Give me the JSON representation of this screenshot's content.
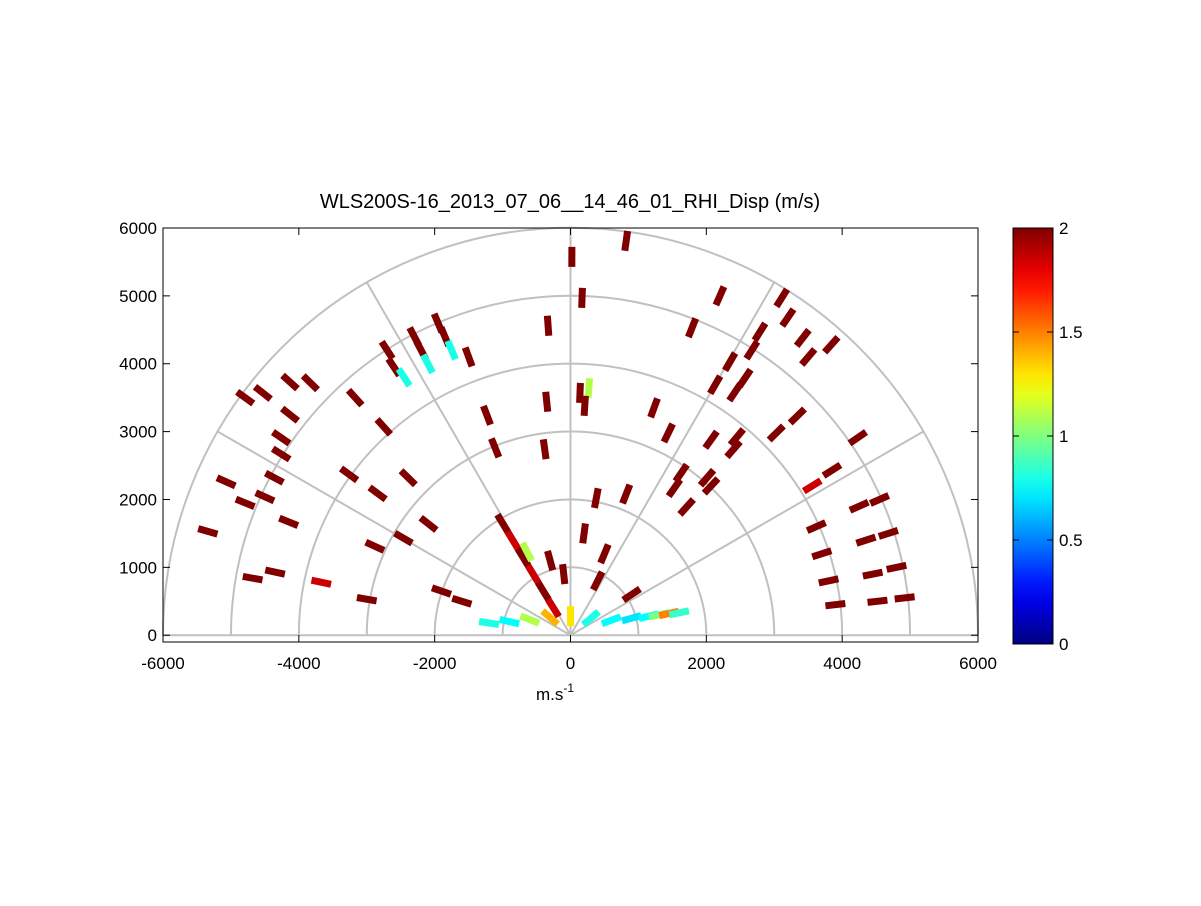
{
  "chart_data": {
    "type": "scatter",
    "title": "WLS200S-16_2013_07_06__14_46_01_RHI_Disp (m/s)",
    "xlabel": [
      "m.s",
      "-1"
    ],
    "xlim": [
      -6000,
      6000
    ],
    "xticks": [
      -6000,
      -4000,
      -2000,
      0,
      2000,
      4000,
      6000
    ],
    "ylim": [
      -100,
      6000
    ],
    "yticks": [
      0,
      1000,
      2000,
      3000,
      4000,
      5000,
      6000
    ],
    "clim": [
      0,
      2
    ],
    "cticks": [
      0,
      0.5,
      1,
      1.5,
      2
    ],
    "colormap": "jet",
    "polar_grid": true,
    "x": [
      20,
      820,
      170,
      2200,
      3110,
      -330,
      1790,
      2790,
      3200,
      3420,
      3840,
      2670,
      3500,
      2350,
      2570,
      2130,
      2420,
      270,
      140,
      -350,
      210,
      1230,
      -1230,
      3340,
      1440,
      3030,
      2450,
      4230,
      2070,
      2400,
      -1110,
      -380,
      1630,
      2010,
      2070,
      3850,
      3560,
      1530,
      820,
      380,
      1710,
      -2390,
      -2840,
      -2090,
      -2460,
      -2880,
      -3000,
      -3670,
      -4350,
      -4680,
      -4150,
      -5340,
      -4500,
      -4790,
      -5070,
      -4360,
      -4260,
      -4260,
      -4130,
      -4530,
      -4130,
      -3830,
      -4790,
      -3260,
      -3170,
      -2750,
      -1500,
      -2700,
      -2300,
      -1950,
      -2600,
      -2200,
      -1850,
      -2450,
      -2100,
      -1750,
      3620,
      3700,
      3800,
      3900,
      4250,
      4350,
      4450,
      4520,
      4550,
      4680,
      4800,
      4920,
      -1000,
      -850,
      -700,
      -550,
      -400,
      -250,
      -640,
      -1200,
      -900,
      -600,
      -300,
      0,
      300,
      600,
      900,
      1150,
      1300,
      1450,
      1600,
      -300,
      200,
      500,
      -100,
      400,
      900,
      -1600,
      -1900
    ],
    "y": [
      5575,
      5810,
      4970,
      5000,
      4970,
      4560,
      4530,
      4470,
      4680,
      4380,
      4280,
      4200,
      4100,
      4030,
      3790,
      3690,
      3580,
      3640,
      3570,
      3440,
      3380,
      3350,
      3240,
      3230,
      2980,
      2980,
      2920,
      2910,
      2880,
      2740,
      2760,
      2740,
      2390,
      2320,
      2200,
      2430,
      2200,
      2170,
      2080,
      2020,
      1890,
      2320,
      2090,
      1640,
      1430,
      1310,
      530,
      780,
      930,
      840,
      1670,
      1530,
      2040,
      1950,
      2260,
      2320,
      2670,
      2910,
      3250,
      3570,
      3730,
      3720,
      3500,
      2370,
      3500,
      3070,
      4100,
      4200,
      4400,
      4600,
      3950,
      4200,
      4400,
      3800,
      4000,
      4200,
      1600,
      1200,
      800,
      450,
      1900,
      1400,
      900,
      500,
      2000,
      1500,
      1000,
      550,
      1650,
      1400,
      1150,
      900,
      650,
      400,
      1230,
      180,
      200,
      230,
      260,
      280,
      250,
      220,
      250,
      280,
      300,
      320,
      330,
      1100,
      1500,
      1200,
      900,
      800,
      600,
      500,
      650
    ],
    "values": [
      2,
      2,
      2,
      2,
      2,
      2,
      2,
      2,
      2,
      2,
      2,
      2,
      2,
      2,
      2,
      2,
      2,
      1.1,
      2,
      2,
      2,
      2,
      2,
      2,
      2,
      2,
      2,
      2,
      2,
      2,
      2,
      2,
      2,
      2,
      2,
      2,
      1.85,
      2,
      2,
      2,
      2,
      2,
      2,
      2,
      2,
      2,
      2,
      1.85,
      2,
      2,
      2,
      2,
      2,
      2,
      2,
      2,
      2,
      2,
      2,
      2,
      2,
      2,
      2,
      2,
      2,
      2,
      2,
      2,
      2,
      2,
      2,
      2,
      2,
      0.8,
      0.8,
      0.8,
      2,
      2,
      2,
      2,
      2,
      2,
      2,
      2,
      2,
      2,
      2,
      2,
      2,
      1.85,
      2,
      1.85,
      2,
      1.85,
      1.1,
      0.8,
      0.75,
      1.1,
      1.4,
      1.3,
      0.8,
      0.75,
      0.7,
      0.75,
      1.0,
      1.5,
      0.85,
      2,
      2,
      2,
      2,
      2,
      2,
      2,
      2
    ]
  }
}
